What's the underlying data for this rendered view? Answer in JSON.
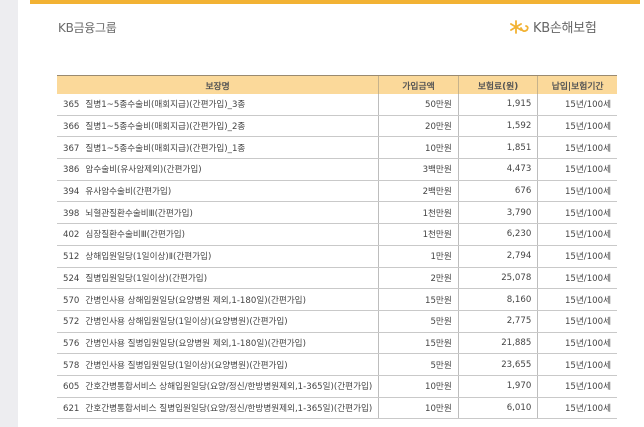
{
  "header": {
    "group_name": "KB금융그룹",
    "company_name": "KB손해보험",
    "logo_icon": "kb-star-logo-icon",
    "accent_color": "#f2b233",
    "header_bg_color": "#fbd99a"
  },
  "table": {
    "columns": [
      "보장명",
      "가입금액",
      "보험료(원)",
      "납입|보험기간"
    ],
    "rows": [
      {
        "code": "365",
        "name": "질병1~5종수술비(매회지급)(간편가입)_3종",
        "amount": "50만원",
        "premium": "1,915",
        "period": "15년/100세"
      },
      {
        "code": "366",
        "name": "질병1~5종수술비(매회지급)(간편가입)_2종",
        "amount": "20만원",
        "premium": "1,592",
        "period": "15년/100세"
      },
      {
        "code": "367",
        "name": "질병1~5종수술비(매회지급)(간편가입)_1종",
        "amount": "10만원",
        "premium": "1,851",
        "period": "15년/100세"
      },
      {
        "code": "386",
        "name": "암수술비(유사암제외)(간편가입)",
        "amount": "3백만원",
        "premium": "4,473",
        "period": "15년/100세"
      },
      {
        "code": "394",
        "name": "유사암수술비(간편가입)",
        "amount": "2백만원",
        "premium": "676",
        "period": "15년/100세"
      },
      {
        "code": "398",
        "name": "뇌혈관질환수술비Ⅲ(간편가입)",
        "amount": "1천만원",
        "premium": "3,790",
        "period": "15년/100세"
      },
      {
        "code": "402",
        "name": "심장질환수술비Ⅲ(간편가입)",
        "amount": "1천만원",
        "premium": "6,230",
        "period": "15년/100세"
      },
      {
        "code": "512",
        "name": "상해입원일당(1일이상)Ⅱ(간편가입)",
        "amount": "1만원",
        "premium": "2,794",
        "period": "15년/100세"
      },
      {
        "code": "524",
        "name": "질병입원일당(1일이상)(간편가입)",
        "amount": "2만원",
        "premium": "25,078",
        "period": "15년/100세"
      },
      {
        "code": "570",
        "name": "간병인사용 상해입원일당(요양병원 제외,1-180일)(간편가입)",
        "amount": "15만원",
        "premium": "8,160",
        "period": "15년/100세"
      },
      {
        "code": "572",
        "name": "간병인사용 상해입원일당(1일이상)(요양병원)(간편가입)",
        "amount": "5만원",
        "premium": "2,775",
        "period": "15년/100세"
      },
      {
        "code": "576",
        "name": "간병인사용 질병입원일당(요양병원 제외,1-180일)(간편가입)",
        "amount": "15만원",
        "premium": "21,885",
        "period": "15년/100세"
      },
      {
        "code": "578",
        "name": "간병인사용 질병입원일당(1일이상)(요양병원)(간편가입)",
        "amount": "5만원",
        "premium": "23,655",
        "period": "15년/100세"
      },
      {
        "code": "605",
        "name": "간호간병통합서비스 상해입원일당(요양/정신/한방병원제외,1-365일)(간편가입)",
        "amount": "10만원",
        "premium": "1,970",
        "period": "15년/100세"
      },
      {
        "code": "621",
        "name": "간호간병통합서비스 질병입원일당(요양/정신/한방병원제외,1-365일)(간편가입)",
        "amount": "10만원",
        "premium": "6,010",
        "period": "15년/100세"
      }
    ]
  }
}
